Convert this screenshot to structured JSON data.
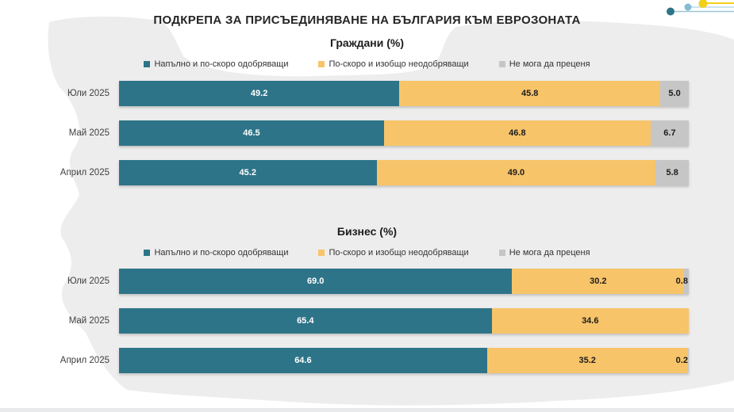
{
  "page": {
    "title": "ПОДКРЕПА ЗА ПРИСЪЕДИНЯВАНЕ НА БЪЛГАРИЯ КЪМ ЕВРОЗОНАТА"
  },
  "legend": {
    "approve": "Напълно и по-скоро одобряващи",
    "disapprove": "По-скоро и изобщо неодобряващи",
    "undecided": "Не мога да преценя"
  },
  "colors": {
    "approve": "#2e7488",
    "disapprove": "#f7c469",
    "undecided": "#c6c6c6",
    "map_background": "#ededed",
    "decor_yellow": "#f2d018",
    "decor_light_blue": "#85bcd4",
    "decor_teal": "#2e7488"
  },
  "chart_data": [
    {
      "type": "bar",
      "orientation": "horizontal",
      "stacked": true,
      "title": "Граждани (%)",
      "xlim": [
        0,
        100
      ],
      "grid": false,
      "legend_position": "top",
      "categories": [
        "Юли 2025",
        "Май 2025",
        "Април 2025"
      ],
      "series": [
        {
          "name": "Напълно и по-скоро одобряващи",
          "values": [
            49.2,
            46.5,
            45.2
          ],
          "labels": [
            "49.2",
            "46.5",
            "45.2"
          ]
        },
        {
          "name": "По-скоро и изобщо неодобряващи",
          "values": [
            45.8,
            46.8,
            49.0
          ],
          "labels": [
            "45.8",
            "46.8",
            "49.0"
          ]
        },
        {
          "name": "Не мога да преценя",
          "values": [
            5.0,
            6.7,
            5.8
          ],
          "labels": [
            "5.0",
            "6.7",
            "5.8"
          ]
        }
      ]
    },
    {
      "type": "bar",
      "orientation": "horizontal",
      "stacked": true,
      "title": "Бизнес (%)",
      "xlim": [
        0,
        100
      ],
      "grid": false,
      "legend_position": "top",
      "categories": [
        "Юли 2025",
        "Май 2025",
        "Април 2025"
      ],
      "series": [
        {
          "name": "Напълно и по-скоро одобряващи",
          "values": [
            69.0,
            65.4,
            64.6
          ],
          "labels": [
            "69.0",
            "65.4",
            "64.6"
          ]
        },
        {
          "name": "По-скоро и изобщо неодобряващи",
          "values": [
            30.2,
            34.6,
            35.2
          ],
          "labels": [
            "30.2",
            "34.6",
            "35.2"
          ]
        },
        {
          "name": "Не мога да преценя",
          "values": [
            0.8,
            0,
            0.2
          ],
          "labels": [
            "0.8",
            "",
            "0.2"
          ]
        }
      ]
    }
  ]
}
